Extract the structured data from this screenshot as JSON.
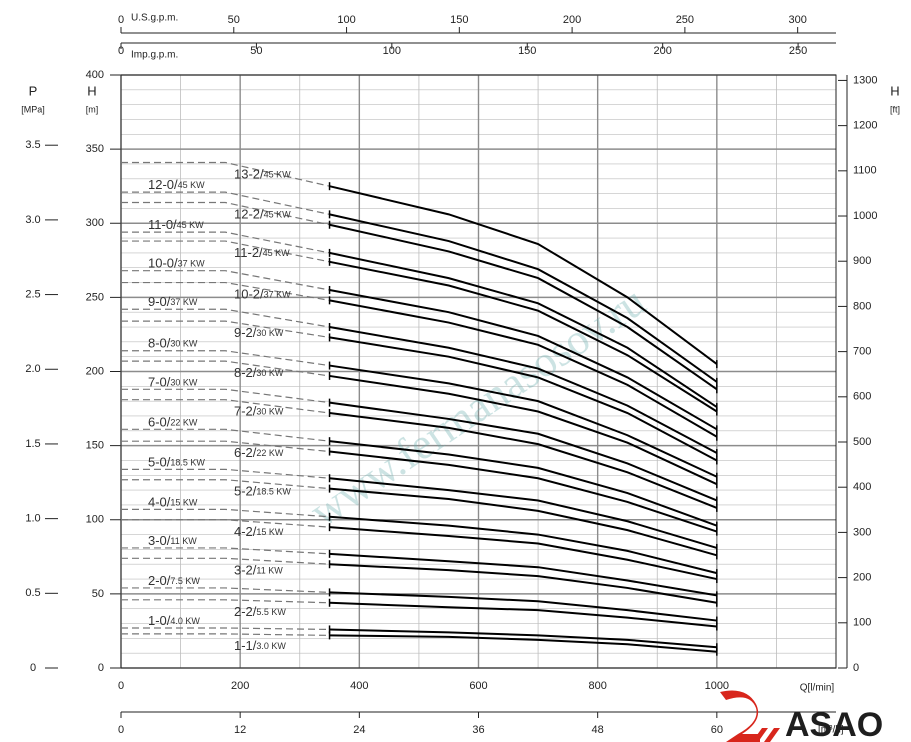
{
  "chart_data": {
    "type": "line",
    "x_label": "Q[l/min]",
    "y_label": "H",
    "y_unit": "[m]",
    "xlim": [
      0,
      1200
    ],
    "xticks": [
      0,
      200,
      400,
      600,
      800,
      1000
    ],
    "ylim": [
      0,
      400
    ],
    "yticks": [
      0,
      50,
      100,
      150,
      200,
      250,
      300,
      350,
      400
    ],
    "grid": true,
    "x": [
      0,
      175,
      350,
      550,
      700,
      850,
      1000
    ],
    "series": [
      {
        "name": "13-2/",
        "power": "45 KW",
        "color": "#000000",
        "values": [
          341,
          341,
          325,
          306,
          286,
          250,
          205
        ]
      },
      {
        "name": "12-0/",
        "power": "45 KW",
        "color": "#000000",
        "values": [
          321,
          321,
          306,
          288,
          269,
          236,
          193
        ]
      },
      {
        "name": "12-2/",
        "power": "45 KW",
        "color": "#000000",
        "values": [
          314,
          314,
          299,
          281,
          263,
          230,
          188
        ]
      },
      {
        "name": "11-0/",
        "power": "45 KW",
        "color": "#000000",
        "values": [
          294,
          294,
          280,
          263,
          246,
          216,
          176
        ]
      },
      {
        "name": "11-2/",
        "power": "45 KW",
        "color": "#000000",
        "values": [
          288,
          288,
          274,
          258,
          241,
          211,
          173
        ]
      },
      {
        "name": "10-0/",
        "power": "37 KW",
        "color": "#000000",
        "values": [
          268,
          268,
          255,
          240,
          224,
          196,
          161
        ]
      },
      {
        "name": "10-2/",
        "power": "37 KW",
        "color": "#000000",
        "values": [
          260,
          260,
          248,
          233,
          218,
          191,
          156
        ]
      },
      {
        "name": "9-0/",
        "power": "37 KW",
        "color": "#000000",
        "values": [
          242,
          242,
          230,
          216,
          202,
          177,
          145
        ]
      },
      {
        "name": "9-2/",
        "power": "30 KW",
        "color": "#000000",
        "values": [
          234,
          234,
          223,
          210,
          196,
          172,
          140
        ]
      },
      {
        "name": "8-0/",
        "power": "30 KW",
        "color": "#000000",
        "values": [
          214,
          214,
          204,
          192,
          180,
          157,
          129
        ]
      },
      {
        "name": "8-2/",
        "power": "30 KW",
        "color": "#000000",
        "values": [
          207,
          207,
          197,
          185,
          173,
          152,
          124
        ]
      },
      {
        "name": "7-0/",
        "power": "30 KW",
        "color": "#000000",
        "values": [
          188,
          188,
          179,
          168,
          158,
          138,
          113
        ]
      },
      {
        "name": "7-2/",
        "power": "30 KW",
        "color": "#000000",
        "values": [
          181,
          181,
          172,
          162,
          151,
          132,
          108
        ]
      },
      {
        "name": "6-0/",
        "power": "22 KW",
        "color": "#000000",
        "values": [
          161,
          161,
          153,
          144,
          135,
          118,
          96
        ]
      },
      {
        "name": "6-2/",
        "power": "22 KW",
        "color": "#000000",
        "values": [
          153,
          153,
          146,
          137,
          128,
          112,
          92
        ]
      },
      {
        "name": "5-0/",
        "power": "18.5 KW",
        "color": "#000000",
        "values": [
          134,
          134,
          128,
          120,
          113,
          99,
          81
        ]
      },
      {
        "name": "5-2/",
        "power": "18.5 KW",
        "color": "#000000",
        "values": [
          127,
          127,
          121,
          114,
          106,
          93,
          76
        ]
      },
      {
        "name": "4-0/",
        "power": "15 KW",
        "color": "#000000",
        "values": [
          107,
          107,
          102,
          96,
          90,
          79,
          64
        ]
      },
      {
        "name": "4-2/",
        "power": "15 KW",
        "color": "#000000",
        "values": [
          100,
          100,
          95,
          89,
          84,
          73,
          60
        ]
      },
      {
        "name": "3-0/",
        "power": "11 KW",
        "color": "#000000",
        "values": [
          81,
          81,
          77,
          72,
          68,
          59,
          49
        ]
      },
      {
        "name": "3-2/",
        "power": "11 KW",
        "color": "#000000",
        "values": [
          74,
          74,
          70,
          66,
          62,
          54,
          44
        ]
      },
      {
        "name": "2-0/",
        "power": "7.5 KW",
        "color": "#000000",
        "values": [
          54,
          54,
          51,
          48,
          45,
          39,
          32
        ]
      },
      {
        "name": "2-2/",
        "power": "5.5 KW",
        "color": "#000000",
        "values": [
          46,
          46,
          44,
          41,
          39,
          34,
          28
        ]
      },
      {
        "name": "1-0/",
        "power": "4.0 KW",
        "color": "#000000",
        "values": [
          27,
          27,
          26,
          24,
          22,
          19,
          14
        ]
      },
      {
        "name": "1-1/",
        "power": "3.0 KW",
        "color": "#000000",
        "values": [
          23,
          23,
          22,
          21,
          19,
          16,
          11
        ]
      }
    ],
    "p_axis": {
      "label": "P",
      "unit": "[MPa]",
      "lim": [
        0,
        3.97
      ],
      "ticks": [
        0,
        0.5,
        {
          "value": 1,
          "label": "1.0"
        },
        1.5,
        {
          "value": 2,
          "label": "2.0"
        },
        2.5,
        {
          "value": 3,
          "label": "3.0"
        },
        3.5
      ]
    },
    "ft_axis": {
      "label": "H",
      "unit": "[ft]",
      "lim": [
        0,
        1312
      ],
      "ticks": [
        0,
        100,
        200,
        300,
        400,
        500,
        600,
        700,
        800,
        900,
        1000,
        1100,
        1200,
        1300
      ]
    },
    "usgpm_axis": {
      "label": "U.S.g.p.m.",
      "lim": [
        0,
        317
      ],
      "ticks": [
        0,
        50,
        100,
        150,
        200,
        250,
        300
      ]
    },
    "impgpm_axis": {
      "label": "Imp.g.p.m.",
      "lim": [
        0,
        264
      ],
      "ticks": [
        0,
        50,
        100,
        150,
        200,
        250
      ]
    },
    "m3h_axis": {
      "label": "[m³/h]",
      "lim": [
        0,
        72
      ],
      "ticks": [
        0,
        12,
        24,
        36,
        48,
        60
      ]
    },
    "watermark": "www.fermanasosov.ru",
    "logo": "ASAO"
  }
}
